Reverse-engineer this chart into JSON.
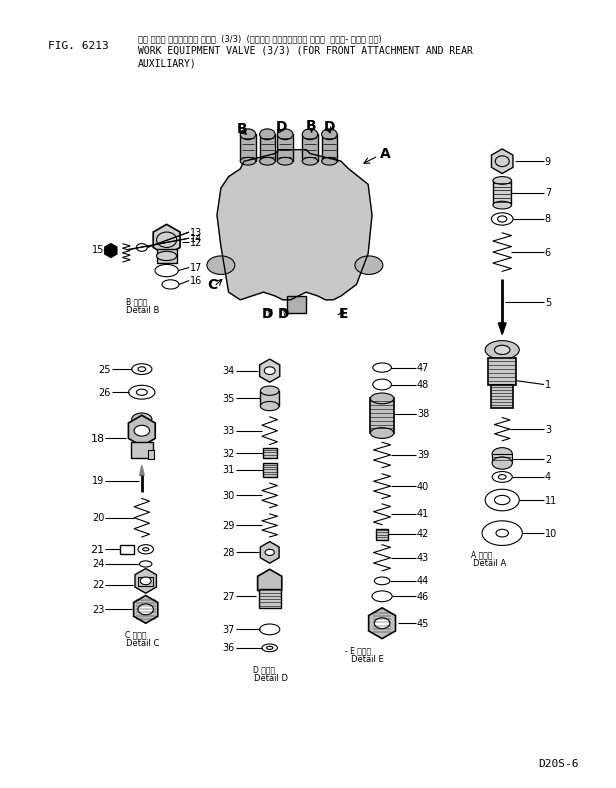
{
  "fig_number": "FIG. 6213",
  "title_jp": "サギ ヨウキ コントロール バルブ  (3/3)  (フロント アタッチメント オヨビ  リヤー- ホジョ ヨウ)",
  "title_en1": "WORK EQUIPMENT VALVE (3/3) (FOR FRONT ATTACHMENT AND REAR",
  "title_en2": "AUXILIARY)",
  "model": "D20S-6",
  "bg_color": "#ffffff",
  "line_color": "#000000"
}
